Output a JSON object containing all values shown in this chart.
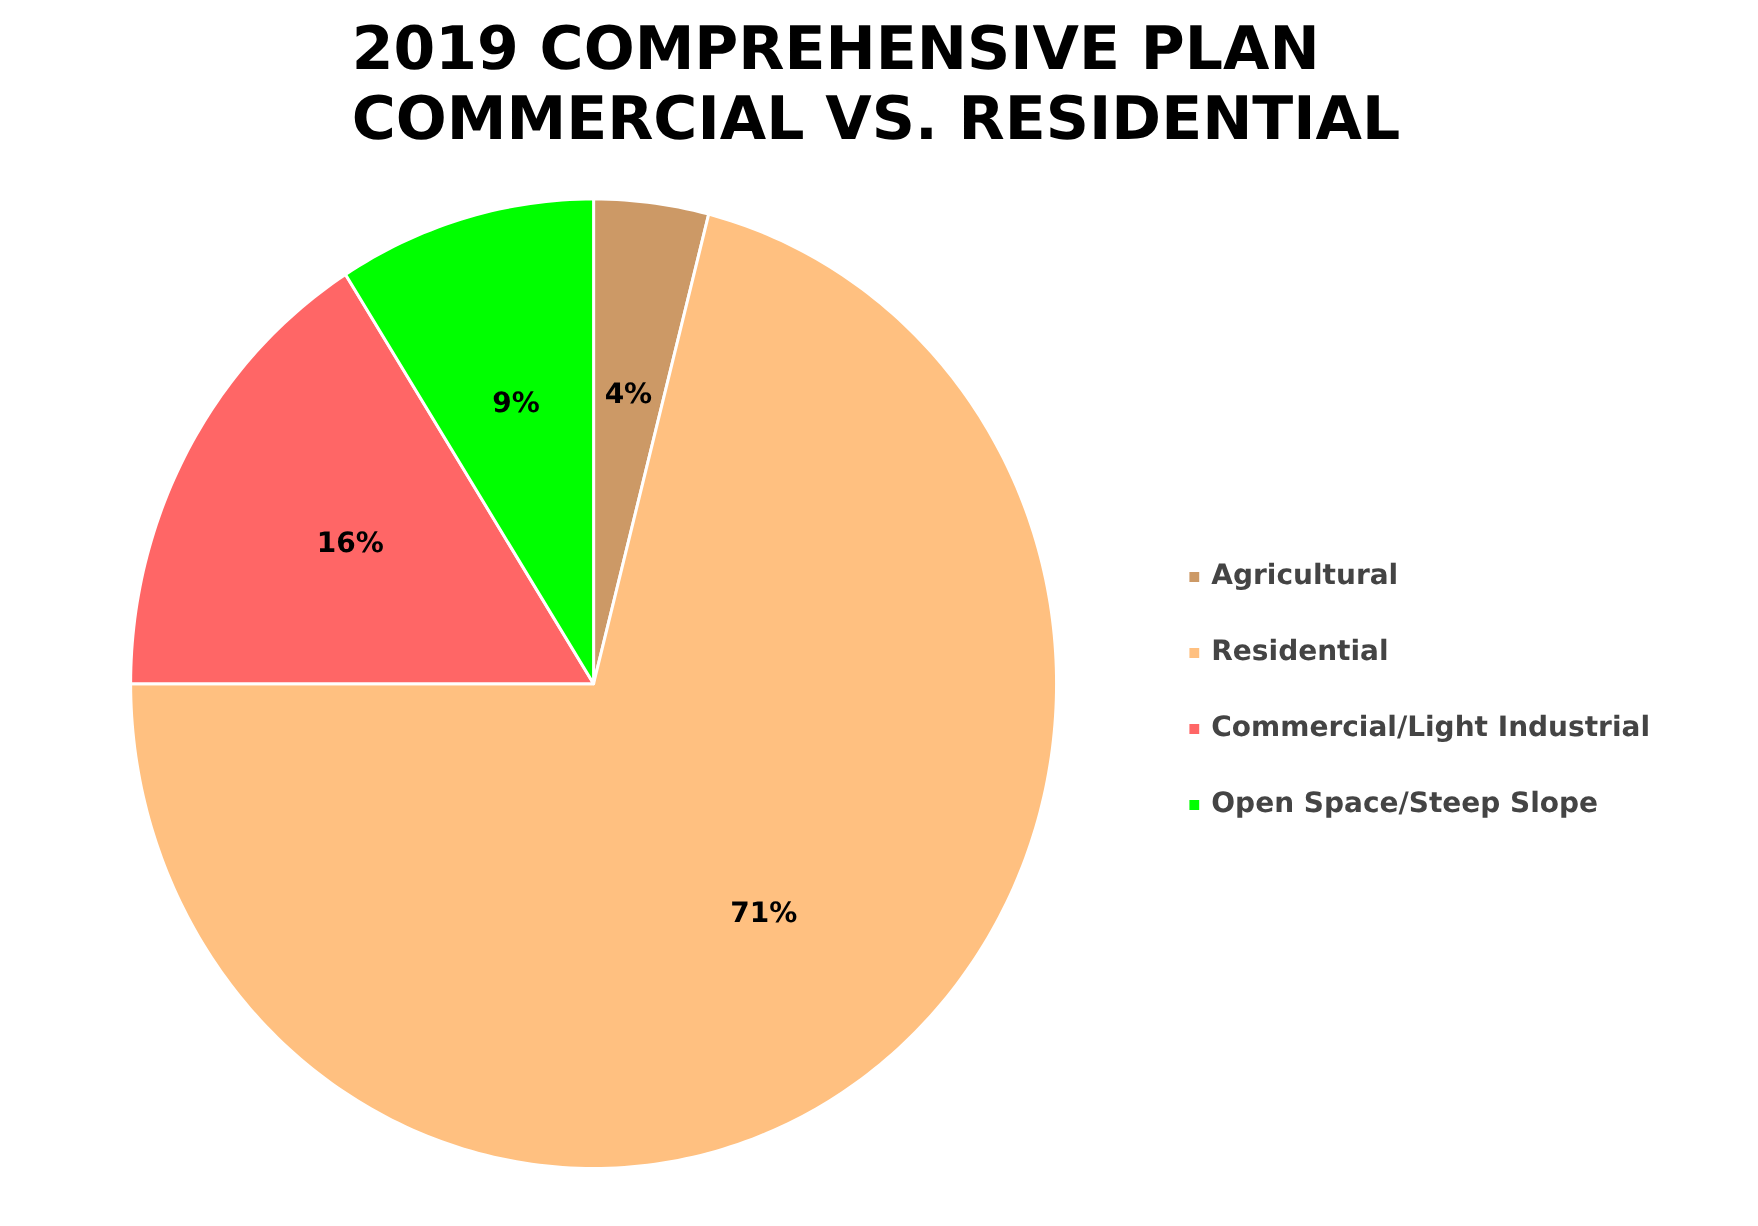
{
  "chart_data": {
    "type": "pie",
    "title": "2019 COMPREHENSIVE PLAN\nCOMMERCIAL VS. RESIDENTIAL",
    "categories": [
      "Agricultural",
      "Residential",
      "Commercial/Light Industrial",
      "Open Space/Steep Slope"
    ],
    "values": [
      4,
      71,
      16,
      9
    ],
    "colors": [
      "#cc9966",
      "#ffc080",
      "#ff6666",
      "#00ff00"
    ],
    "value_labels": [
      "4%",
      "71%",
      "16%",
      "9%"
    ],
    "legend": "right"
  }
}
